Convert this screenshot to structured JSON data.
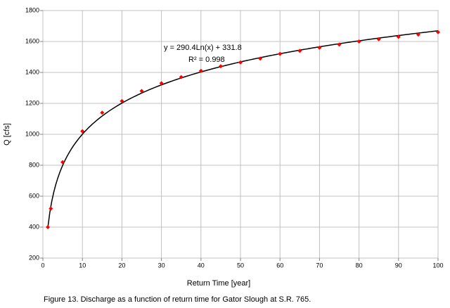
{
  "chart_data": {
    "type": "scatter",
    "x_label": "Return Time [year]",
    "y_label": "Q [cfs]",
    "caption": "Figure 13.  Discharge as a function of return time for Gator Slough at S.R. 765.",
    "x": [
      1.25,
      2,
      5,
      10,
      15,
      20,
      25,
      30,
      35,
      40,
      45,
      50,
      55,
      60,
      65,
      70,
      75,
      80,
      85,
      90,
      95,
      100
    ],
    "series": [
      {
        "name": "Q",
        "color": "#ff0000",
        "values": [
          400,
          520,
          820,
          1020,
          1140,
          1215,
          1280,
          1330,
          1370,
          1410,
          1440,
          1465,
          1490,
          1520,
          1540,
          1560,
          1580,
          1600,
          1615,
          1630,
          1645,
          1660
        ]
      }
    ],
    "trendline": {
      "equation": "y = 290.4Ln(x) + 331.8",
      "r_squared_label": "R² = 0.998",
      "slope": 290.4,
      "intercept": 331.8,
      "color": "#000000"
    },
    "xlim": [
      0,
      100
    ],
    "xticks": [
      0,
      10,
      20,
      30,
      40,
      50,
      60,
      70,
      80,
      90,
      100
    ],
    "ylim": [
      200,
      1800
    ],
    "yticks": [
      200,
      400,
      600,
      800,
      1000,
      1200,
      1400,
      1600,
      1800
    ],
    "grid": true
  }
}
